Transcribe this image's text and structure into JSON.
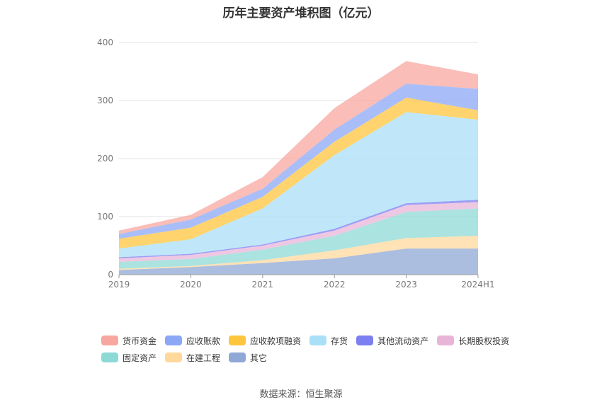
{
  "title": "历年主要资产堆积图（亿元）",
  "source": "数据来源：恒生聚源",
  "chart_data": {
    "type": "area",
    "stacked": true,
    "title": "历年主要资产堆积图（亿元）",
    "xlabel": "",
    "ylabel": "",
    "x": [
      "2019",
      "2020",
      "2021",
      "2022",
      "2023",
      "2024H1"
    ],
    "ylim": [
      0,
      400
    ],
    "yticks": [
      0,
      100,
      200,
      300,
      400
    ],
    "grid": true,
    "legend_position": "bottom",
    "series": [
      {
        "name": "其它",
        "color": "#8fa8d6",
        "values": [
          8,
          13,
          20,
          28,
          45,
          45
        ]
      },
      {
        "name": "在建工程",
        "color": "#ffd89c",
        "values": [
          2,
          2,
          5,
          14,
          18,
          22
        ]
      },
      {
        "name": "固定资产",
        "color": "#8dd9d6",
        "values": [
          12,
          12,
          18,
          25,
          45,
          47
        ]
      },
      {
        "name": "长期股权投资",
        "color": "#e8b5d8",
        "values": [
          6,
          7,
          7,
          9,
          12,
          11
        ]
      },
      {
        "name": "其他流动资产",
        "color": "#7b7ff0",
        "values": [
          2,
          2,
          2,
          3,
          3,
          4
        ]
      },
      {
        "name": "存货",
        "color": "#a9dff7",
        "values": [
          15,
          25,
          62,
          127,
          157,
          138
        ]
      },
      {
        "name": "应收款项融资",
        "color": "#ffc53d",
        "values": [
          17,
          20,
          20,
          23,
          25,
          16
        ]
      },
      {
        "name": "应收账款",
        "color": "#8ca8f5",
        "values": [
          8,
          14,
          14,
          21,
          24,
          37
        ]
      },
      {
        "name": "货币资金",
        "color": "#f8a7a0",
        "values": [
          6,
          8,
          20,
          37,
          39,
          25
        ]
      }
    ],
    "legend_order": [
      "货币资金",
      "应收账款",
      "应收款项融资",
      "存货",
      "其他流动资产",
      "长期股权投资",
      "固定资产",
      "在建工程",
      "其它"
    ]
  }
}
